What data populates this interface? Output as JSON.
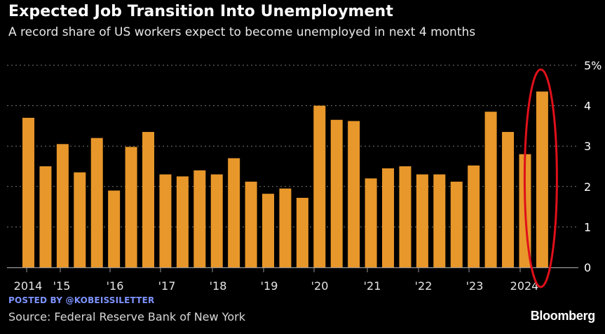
{
  "header": {
    "title": "Expected Job Transition Into Unemployment",
    "subtitle": "A record share of US workers expect to become unemployed in next 4 months"
  },
  "footer": {
    "posted_by": "POSTED BY @KOBEISSILETTER",
    "source": "Source: Federal Reserve Bank of New York",
    "brand": "Bloomberg"
  },
  "colors": {
    "bar": "#E8972A",
    "gridline": "#777777",
    "baseline": "#999999",
    "highlight_ellipse": "#E0101A",
    "text": "#ffffff"
  },
  "chart_data": {
    "type": "bar",
    "title": "Expected Job Transition Into Unemployment",
    "subtitle": "A record share of US workers expect to become unemployed in next 4 months",
    "xlabel": "",
    "ylabel": "",
    "ylim": [
      0,
      5
    ],
    "yticks": [
      "0",
      "1",
      "2",
      "3",
      "4",
      "5%"
    ],
    "grid": true,
    "x_tick_labels": [
      "2014",
      "'15",
      "'16",
      "'17",
      "'18",
      "'19",
      "'20",
      "'21",
      "'22",
      "'23",
      "2024"
    ],
    "values": [
      3.7,
      2.5,
      3.05,
      2.35,
      3.2,
      1.9,
      2.98,
      3.35,
      2.3,
      2.25,
      2.4,
      2.3,
      2.7,
      2.12,
      1.82,
      1.95,
      1.72,
      4.0,
      3.65,
      3.62,
      2.2,
      2.45,
      2.5,
      2.3,
      2.3,
      2.12,
      2.52,
      3.85,
      3.35,
      2.8,
      4.35
    ],
    "annotation": "red ellipse circling the latest bar"
  }
}
